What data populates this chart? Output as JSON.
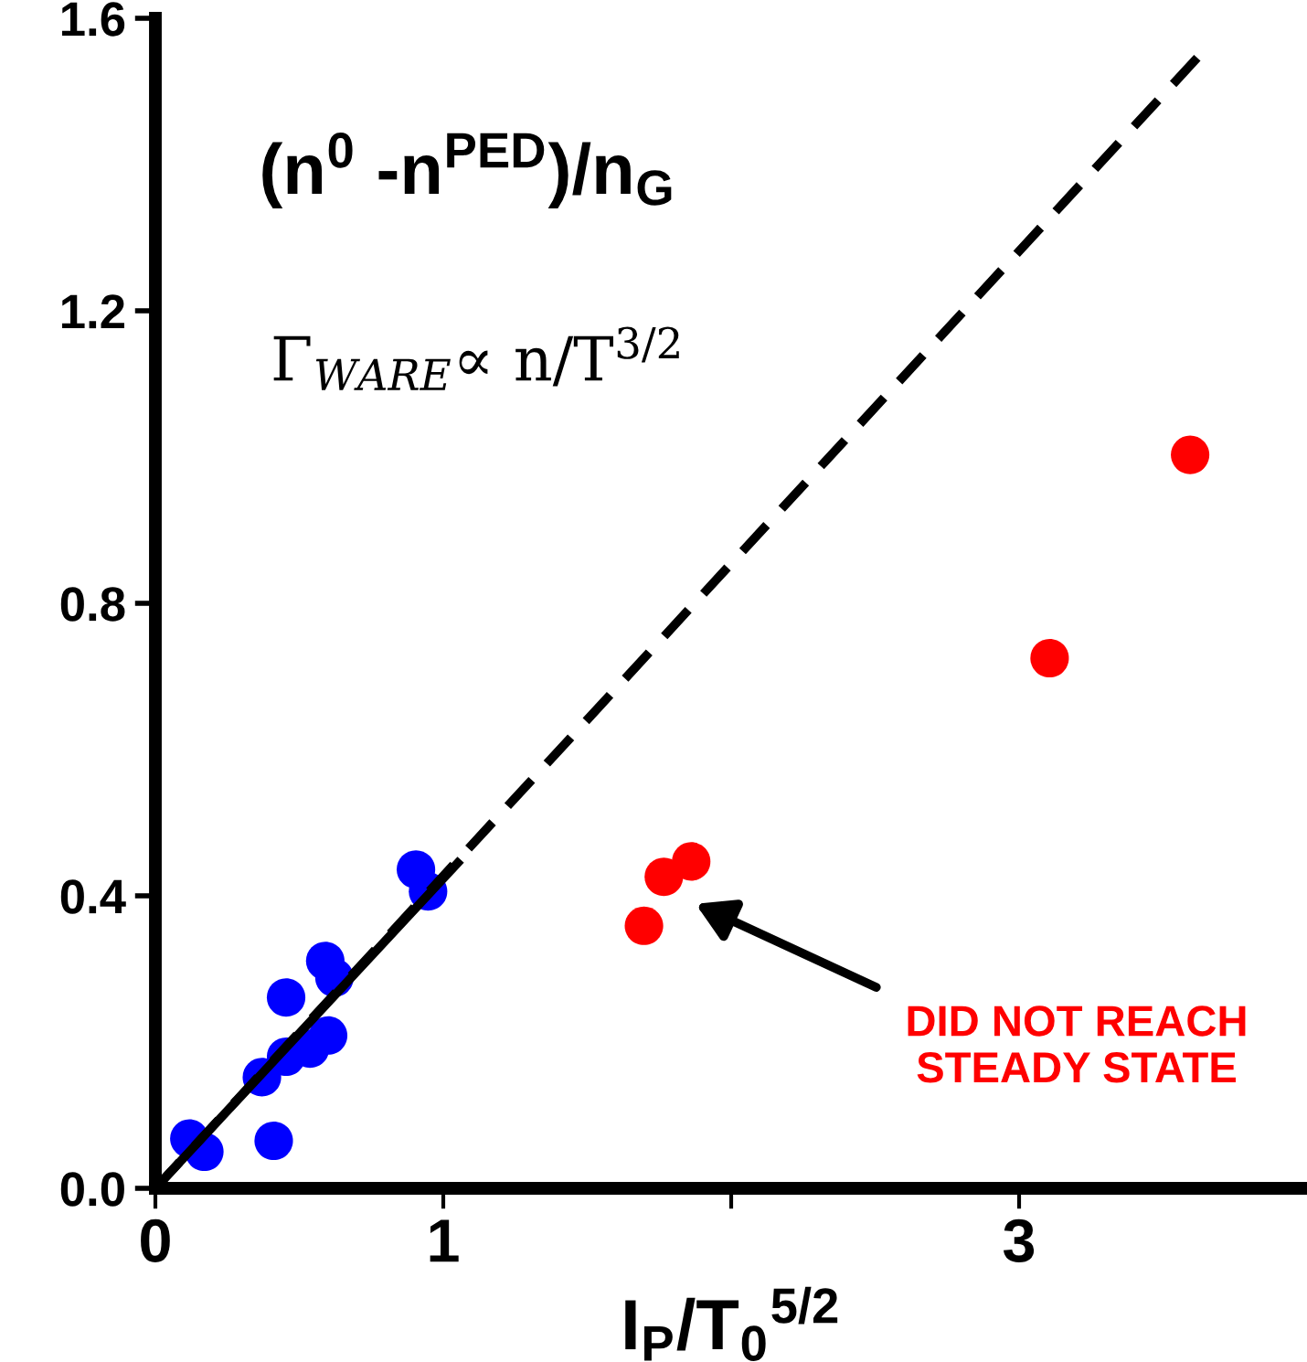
{
  "chart_data": {
    "type": "scatter",
    "ylabel": "(n$^{0}$ -n$^{PED}$)/n$_{G}$",
    "xlabel": "I$_{P}$/T$_{0}$$^{5/2}$",
    "series": [
      {
        "color": "#0000ff",
        "x": [
          0.905,
          0.947,
          0.59,
          0.622,
          0.454,
          0.6,
          0.537,
          0.454,
          0.37,
          0.411,
          0.118,
          0.17
        ],
        "values": [
          0.436,
          0.406,
          0.311,
          0.288,
          0.261,
          0.209,
          0.191,
          0.18,
          0.152,
          0.065,
          0.068,
          0.05
        ]
      },
      {
        "color": "#ff0000",
        "x": [
          1.861,
          1.766,
          1.697,
          3.594,
          3.106
        ],
        "values": [
          0.447,
          0.426,
          0.359,
          1.003,
          0.725
        ]
      },
      {
        "type": "line",
        "color": "#000000",
        "line_style": "dashed",
        "marker": "none",
        "x": [
          0,
          3.64
        ],
        "values": [
          0,
          1.555
        ]
      },
      {
        "type": "line",
        "color": "#000000",
        "line_style": "solid",
        "marker": "none",
        "x": [
          0,
          1.05
        ],
        "values": [
          0,
          0.445
        ]
      }
    ],
    "annotations": [
      "Γ$_{WARE}$∝ n/T$^{3/2}$",
      "DID NOT REACH\nSTEADY STATE"
    ],
    "xlim": [
      0,
      4
    ],
    "ylim": [
      0,
      1.6
    ],
    "xticks": [
      0,
      1,
      {
        "value": 2,
        "label": null
      },
      3
    ],
    "yticks": [
      {
        "value": 0,
        "label": "0.0"
      },
      0.4,
      0.8,
      1.2,
      1.6
    ],
    "marker": "circle",
    "grid": false,
    "legend": false
  }
}
